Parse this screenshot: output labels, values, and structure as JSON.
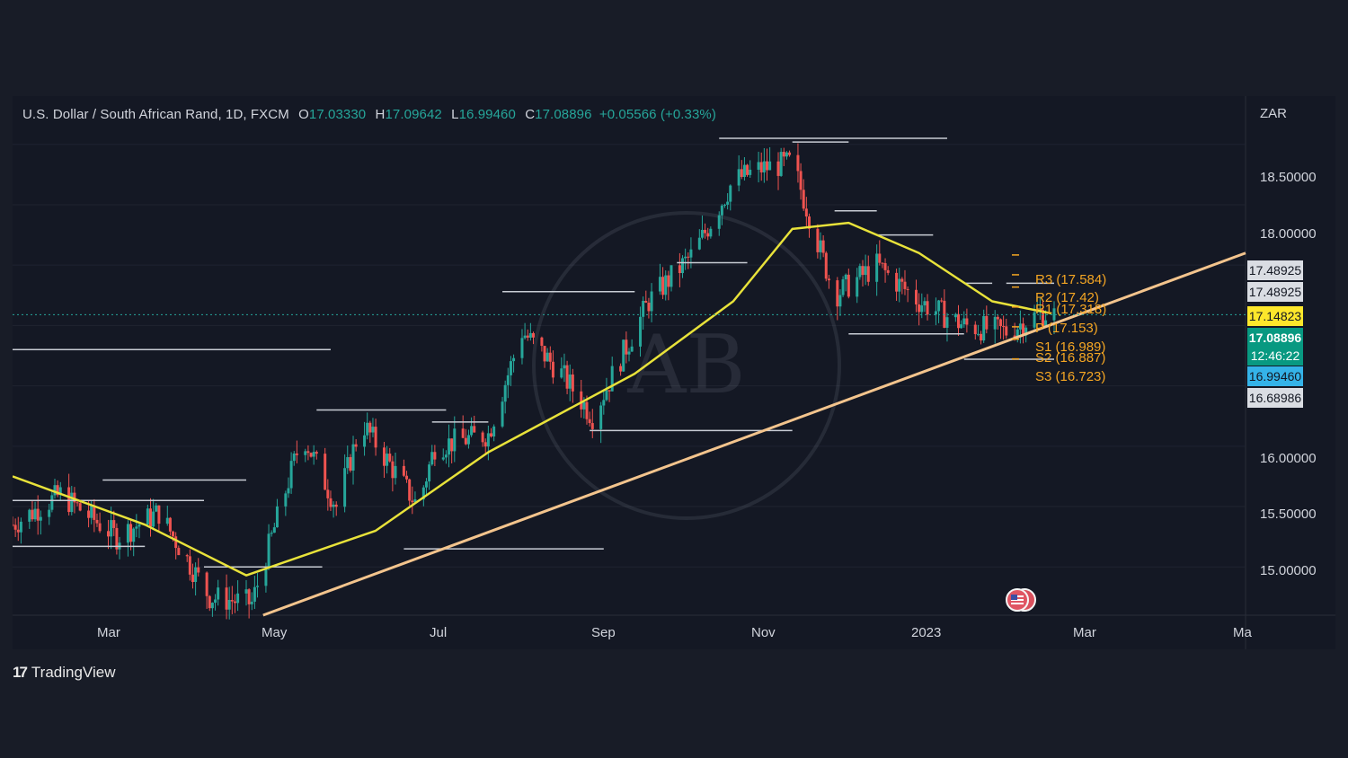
{
  "header": {
    "symbol": "U.S. Dollar / South African Rand, 1D, FXCM",
    "open_label": "O",
    "open": "17.03330",
    "high_label": "H",
    "high": "17.09642",
    "low_label": "L",
    "low": "16.99460",
    "close_label": "C",
    "close": "17.08896",
    "change": "+0.05566 (+0.33%)"
  },
  "currency": "ZAR",
  "price_scale": {
    "ticks": [
      "18.50000",
      "18.00000",
      "16.00000",
      "15.50000",
      "15.00000"
    ],
    "tags": [
      {
        "text": "17.48925",
        "bg": "#dadde3",
        "fg": "#131722"
      },
      {
        "text": "17.48925",
        "bg": "#dadde3",
        "fg": "#131722"
      },
      {
        "text": "17.14823",
        "bg": "#fde72b",
        "fg": "#131722"
      },
      {
        "text": "17.08896",
        "bg": "#089981",
        "fg": "#ffffff"
      },
      {
        "text": "12:46:22",
        "bg": "#089981",
        "fg": "#ffffff"
      },
      {
        "text": "16.99460",
        "bg": "#34b3e8",
        "fg": "#131722"
      },
      {
        "text": "16.68986",
        "bg": "#dadde3",
        "fg": "#131722"
      }
    ]
  },
  "time_scale": {
    "ticks": [
      "Mar",
      "May",
      "Jul",
      "Sep",
      "Nov",
      "2023",
      "Mar",
      "Ma"
    ]
  },
  "pivots": [
    "R3 (17.584)",
    "R2 (17.42)",
    "R1 (17.318)",
    "P (17.153)",
    "S1 (16.989)",
    "S2 (16.887)",
    "S3 (16.723)"
  ],
  "logo": {
    "mark": "17",
    "text": "TradingView"
  },
  "watermark": "AB",
  "colors": {
    "background": "#181c27",
    "panel": "#141824",
    "up": "#26a69a",
    "down": "#ef5350",
    "ma": "#e8e23a",
    "trendline": "#f3c48d",
    "pivot": "#f5a623",
    "level": "#c8ccd4"
  },
  "chart_data": {
    "type": "candlestick",
    "title": "U.S. Dollar / South African Rand, 1D, FXCM",
    "y_unit": "ZAR",
    "ylim": [
      14.6,
      18.9
    ],
    "x_range": [
      "2022-02-01",
      "2023-04-15"
    ],
    "last_close": 17.08896,
    "moving_average": [
      {
        "date": "2022-02-01",
        "value": 15.75
      },
      {
        "date": "2022-03-20",
        "value": 15.35
      },
      {
        "date": "2022-04-25",
        "value": 14.93
      },
      {
        "date": "2022-06-10",
        "value": 15.3
      },
      {
        "date": "2022-07-20",
        "value": 15.95
      },
      {
        "date": "2022-09-10",
        "value": 16.6
      },
      {
        "date": "2022-10-15",
        "value": 17.2
      },
      {
        "date": "2022-11-05",
        "value": 17.8
      },
      {
        "date": "2022-11-25",
        "value": 17.85
      },
      {
        "date": "2022-12-20",
        "value": 17.6
      },
      {
        "date": "2023-01-15",
        "value": 17.2
      },
      {
        "date": "2023-02-05",
        "value": 17.1
      }
    ],
    "trendline": [
      {
        "date": "2022-05-01",
        "value": 14.6
      },
      {
        "date": "2023-03-20",
        "value": 17.6
      }
    ],
    "pivot_levels": [
      {
        "name": "R3",
        "value": 17.584
      },
      {
        "name": "R2",
        "value": 17.42
      },
      {
        "name": "R1",
        "value": 17.318
      },
      {
        "name": "P",
        "value": 17.153
      },
      {
        "name": "S1",
        "value": 16.989
      },
      {
        "name": "S2",
        "value": 16.887
      },
      {
        "name": "S3",
        "value": 16.723
      }
    ],
    "price_path": [
      {
        "date": "2022-02-01",
        "value": 15.35
      },
      {
        "date": "2022-02-18",
        "value": 15.6
      },
      {
        "date": "2022-03-10",
        "value": 15.25
      },
      {
        "date": "2022-03-25",
        "value": 15.45
      },
      {
        "date": "2022-04-12",
        "value": 14.75
      },
      {
        "date": "2022-04-27",
        "value": 14.7
      },
      {
        "date": "2022-05-15",
        "value": 16.1
      },
      {
        "date": "2022-05-27",
        "value": 15.5
      },
      {
        "date": "2022-06-05",
        "value": 16.2
      },
      {
        "date": "2022-06-25",
        "value": 15.5
      },
      {
        "date": "2022-07-01",
        "value": 16.0
      },
      {
        "date": "2022-07-20",
        "value": 16.1
      },
      {
        "date": "2022-08-01",
        "value": 16.95
      },
      {
        "date": "2022-08-15",
        "value": 16.6
      },
      {
        "date": "2022-08-26",
        "value": 16.25
      },
      {
        "date": "2022-09-15",
        "value": 17.2
      },
      {
        "date": "2022-10-01",
        "value": 17.6
      },
      {
        "date": "2022-10-15",
        "value": 18.2
      },
      {
        "date": "2022-10-25",
        "value": 18.3
      },
      {
        "date": "2022-11-05",
        "value": 18.35
      },
      {
        "date": "2022-11-20",
        "value": 17.25
      },
      {
        "date": "2022-12-05",
        "value": 17.5
      },
      {
        "date": "2022-12-20",
        "value": 17.2
      },
      {
        "date": "2023-01-05",
        "value": 17.0
      },
      {
        "date": "2023-01-20",
        "value": 16.95
      },
      {
        "date": "2023-02-01",
        "value": 17.1
      },
      {
        "date": "2023-02-06",
        "value": 17.09
      }
    ]
  }
}
